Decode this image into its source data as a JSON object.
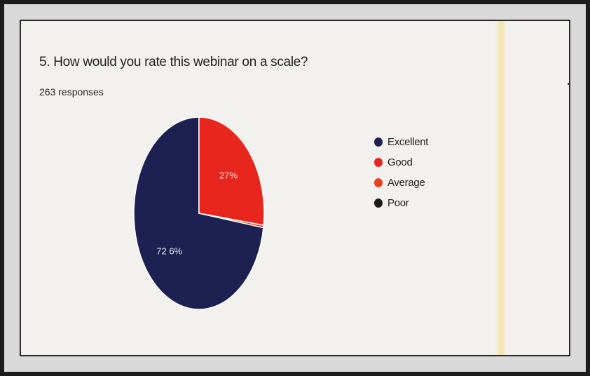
{
  "question": {
    "title": "5. How would you rate this webinar on a scale?",
    "responses": "263 responses"
  },
  "chart_data": {
    "type": "pie",
    "categories": [
      "Excellent",
      "Good",
      "Average",
      "Poor"
    ],
    "values": [
      72.6,
      27,
      0.4,
      0
    ],
    "slice_labels": [
      "72 6%",
      "27%",
      "",
      ""
    ],
    "colors": [
      "#1d2152",
      "#e8261d",
      "#e8401d",
      "#1a1a1a"
    ],
    "legend": "right"
  }
}
